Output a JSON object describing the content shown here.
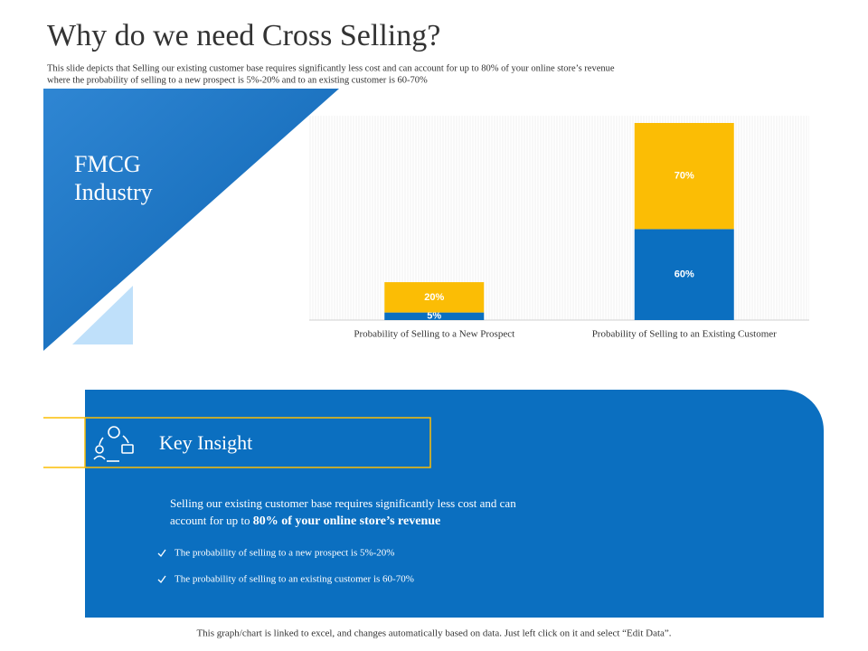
{
  "header": {
    "title": "Why do we need Cross Selling?",
    "subtitle": [
      "This slide depicts that Selling our existing customer base requires significantly less cost and can account for up to 80% of your online store’s revenue",
      "where the probability of selling to a new prospect is 5%-20% and to an existing customer is 60-70%"
    ]
  },
  "side_label": [
    "FMCG",
    "Industry"
  ],
  "chart_data": {
    "type": "bar",
    "stacked": true,
    "categories": [
      "Probability of Selling to a New Prospect",
      "Probability of Selling to an Existing Customer"
    ],
    "series": [
      {
        "color": "#0b6fc0",
        "values": [
          5,
          60
        ],
        "value_labels": [
          "5%",
          "60%"
        ]
      },
      {
        "color": "#fbbd05",
        "values": [
          20,
          70
        ],
        "value_labels": [
          "20%",
          "70%"
        ]
      }
    ]
  },
  "insight": {
    "title": "Key Insight",
    "line1": "Selling our existing customer base requires significantly less cost and can",
    "line2": "account for up to",
    "emphasis": "80% of your online store’s revenue",
    "bullets": [
      "The probability of selling to a new prospect is 5%-20%",
      "The probability of selling to an existing customer is 60-70%"
    ]
  },
  "footer": "This graph/chart is linked to excel, and changes automatically based on data. Just left click on it and select “Edit Data”."
}
